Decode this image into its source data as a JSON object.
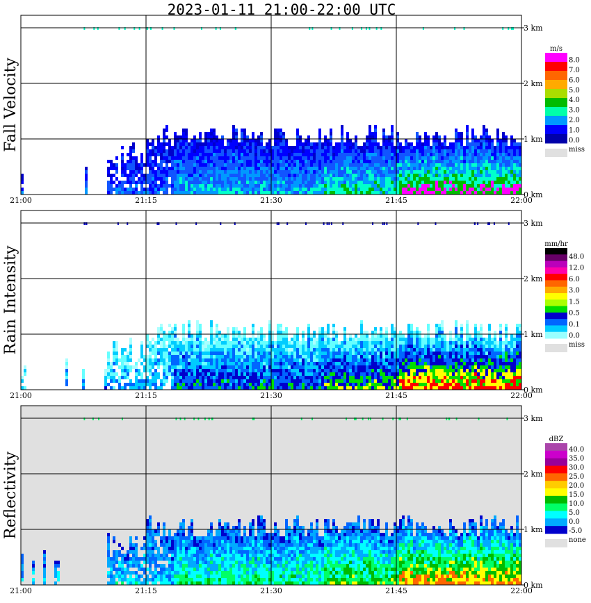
{
  "title": "2023-01-11   21:00-22:00 UTC",
  "height_unit": "km",
  "chart_data": [
    {
      "type": "heatmap",
      "ylabel": "Fall Velocity",
      "x_ticks": [
        "21:00",
        "21:15",
        "21:30",
        "21:45",
        "22:00"
      ],
      "y_ticks": [
        "0 km",
        "1 km",
        "2 km",
        "3 km"
      ],
      "xlim": [
        "21:00",
        "22:00"
      ],
      "ylim": [
        0,
        3
      ],
      "grid": true,
      "legend": {
        "unit": "m/s",
        "labels": [
          "8.0",
          "7.0",
          "6.0",
          "5.0",
          "4.0",
          "3.0",
          "2.0",
          "1.0",
          "0.0"
        ],
        "colors": [
          "#ff00ff",
          "#ff0000",
          "#ff6600",
          "#ffaa00",
          "#aadd00",
          "#00bb00",
          "#00ffaa",
          "#0099ff",
          "#0000ff",
          "#0000aa"
        ],
        "missing_label": "miss",
        "missing_color": "#e0e0e0"
      },
      "background": "#ffffff",
      "echo_top_km": 1.1,
      "palette": [
        "#0000cc",
        "#0000ff",
        "#1155ff",
        "#0099ff",
        "#00ffcc",
        "#00bb00",
        "#ff00ff"
      ]
    },
    {
      "type": "heatmap",
      "ylabel": "Rain Intensity",
      "x_ticks": [
        "21:00",
        "21:15",
        "21:30",
        "21:45",
        "22:00"
      ],
      "y_ticks": [
        "0 km",
        "1 km",
        "2 km",
        "3 km"
      ],
      "xlim": [
        "21:00",
        "22:00"
      ],
      "ylim": [
        0,
        3
      ],
      "grid": true,
      "legend": {
        "unit": "mm/hr",
        "labels": [
          "48.0",
          "12.0",
          "6.0",
          "3.0",
          "1.5",
          "0.5",
          "0.1",
          "0.0"
        ],
        "colors": [
          "#000000",
          "#660066",
          "#bb00bb",
          "#ff00aa",
          "#ff0000",
          "#ff6600",
          "#ffaa00",
          "#ffff00",
          "#aaff00",
          "#00dd00",
          "#0000cc",
          "#0066ff",
          "#00ccff",
          "#99ffff"
        ],
        "missing_label": "miss",
        "missing_color": "#e0e0e0"
      },
      "background": "#ffffff",
      "echo_top_km": 1.1,
      "palette": [
        "#aaffff",
        "#66ffff",
        "#00ccff",
        "#0066ff",
        "#0000cc",
        "#00dd00",
        "#ffff00",
        "#ff0000"
      ]
    },
    {
      "type": "heatmap",
      "ylabel": "Reflectivity",
      "x_ticks": [
        "21:00",
        "21:15",
        "21:30",
        "21:45",
        "22:00"
      ],
      "y_ticks": [
        "0 km",
        "1 km",
        "2 km",
        "3 km"
      ],
      "xlim": [
        "21:00",
        "22:00"
      ],
      "ylim": [
        0,
        3
      ],
      "grid": true,
      "legend": {
        "unit": "dBZ",
        "labels": [
          "40.0",
          "35.0",
          "30.0",
          "25.0",
          "20.0",
          "15.0",
          "10.0",
          "5.0",
          "0.0",
          "-5.0"
        ],
        "colors": [
          "#aa44aa",
          "#cc00cc",
          "#990099",
          "#ff0000",
          "#ff6600",
          "#ffcc00",
          "#ffff00",
          "#00bb00",
          "#00ff66",
          "#00ffff",
          "#00aaff",
          "#0000cc"
        ],
        "missing_label": "none",
        "missing_color": "#e0e0e0"
      },
      "background": "#e0e0e0",
      "echo_top_km": 1.1,
      "palette": [
        "#0000cc",
        "#0066ff",
        "#00aaff",
        "#00ffff",
        "#00ff66",
        "#00bb00",
        "#ffff00",
        "#ff6600"
      ]
    }
  ]
}
